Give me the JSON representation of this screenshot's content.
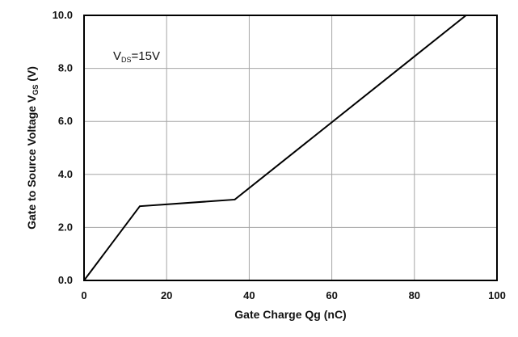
{
  "chart_data": {
    "type": "line",
    "title": "",
    "xlabel": "Gate Charge Qg (nC)",
    "ylabel": {
      "main": "Gate to  Source  Voltage V",
      "subscript": "GS",
      "suffix": " (V)"
    },
    "xlim": [
      0,
      100
    ],
    "ylim": [
      0,
      10
    ],
    "x_ticks": [
      "0",
      "20",
      "40",
      "60",
      "80",
      "100"
    ],
    "y_ticks": [
      "0.0",
      "2.0",
      "4.0",
      "6.0",
      "8.0",
      "10.0"
    ],
    "grid": true,
    "legend": "none",
    "annotation": {
      "main": "V",
      "subscript": "DS",
      "suffix": "=15V"
    },
    "series": [
      {
        "x": [
          0,
          13.5,
          36.5,
          92.5
        ],
        "y": [
          0,
          2.8,
          3.05,
          10.0
        ],
        "color": "#000000"
      }
    ]
  }
}
